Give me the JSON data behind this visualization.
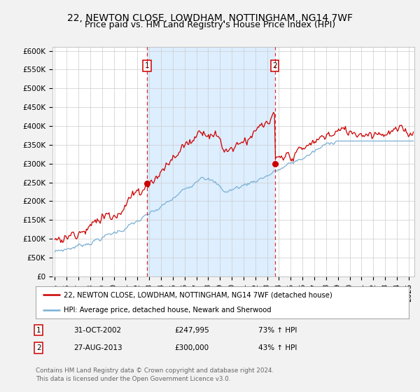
{
  "title": "22, NEWTON CLOSE, LOWDHAM, NOTTINGHAM, NG14 7WF",
  "subtitle": "Price paid vs. HM Land Registry's House Price Index (HPI)",
  "title_fontsize": 10,
  "subtitle_fontsize": 9,
  "ylabel_ticks": [
    "£0",
    "£50K",
    "£100K",
    "£150K",
    "£200K",
    "£250K",
    "£300K",
    "£350K",
    "£400K",
    "£450K",
    "£500K",
    "£550K",
    "£600K"
  ],
  "ytick_values": [
    0,
    50000,
    100000,
    150000,
    200000,
    250000,
    300000,
    350000,
    400000,
    450000,
    500000,
    550000,
    600000
  ],
  "ylim": [
    0,
    610000
  ],
  "xlim_start": 1994.8,
  "xlim_end": 2025.5,
  "background_color": "#f2f2f2",
  "plot_bg_color": "#ffffff",
  "grid_color": "#cccccc",
  "red_line_color": "#cc0000",
  "blue_line_color": "#7ab0d4",
  "shade_color": "#ddeeff",
  "sale1_x": 2002.83,
  "sale1_y": 247995,
  "sale2_x": 2013.65,
  "sale2_y": 300000,
  "sale1_label": "1",
  "sale2_label": "2",
  "legend_line1": "22, NEWTON CLOSE, LOWDHAM, NOTTINGHAM, NG14 7WF (detached house)",
  "legend_line2": "HPI: Average price, detached house, Newark and Sherwood",
  "table_row1": [
    "1",
    "31-OCT-2002",
    "£247,995",
    "73% ↑ HPI"
  ],
  "table_row2": [
    "2",
    "27-AUG-2013",
    "£300,000",
    "43% ↑ HPI"
  ],
  "footer": "Contains HM Land Registry data © Crown copyright and database right 2024.\nThis data is licensed under the Open Government Licence v3.0.",
  "dashed_x1": 2002.83,
  "dashed_x2": 2013.65
}
